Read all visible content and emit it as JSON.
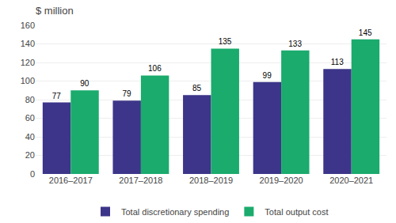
{
  "chart_data": {
    "type": "bar",
    "title": "$ million",
    "categories": [
      "2016–2017",
      "2017–2018",
      "2018–2019",
      "2019–2020",
      "2020–2021"
    ],
    "series": [
      {
        "name": "Total discretionary spending",
        "color": "#3c3589",
        "values": [
          77,
          79,
          85,
          99,
          113
        ]
      },
      {
        "name": "Total output cost",
        "color": "#1aab6d",
        "values": [
          90,
          106,
          135,
          133,
          145
        ]
      }
    ],
    "ylim": [
      0,
      160
    ],
    "yticks": [
      0,
      20,
      40,
      60,
      80,
      100,
      120,
      140,
      160
    ],
    "grid": true,
    "data_labels": true,
    "legend": "bottom"
  }
}
